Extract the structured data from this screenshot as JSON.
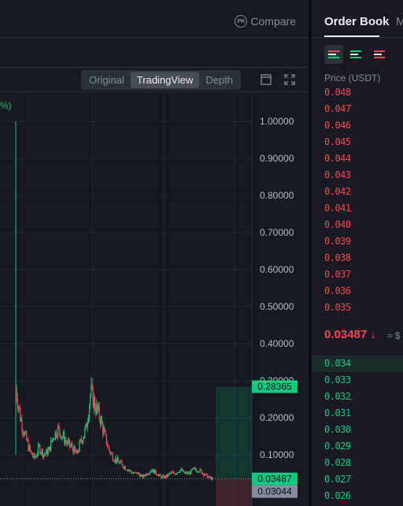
{
  "header": {
    "compare_label": "Compare",
    "compare_icon_text": "PK",
    "compare_icon": "pk-badge-icon"
  },
  "chart_toolbar": {
    "tabs": [
      {
        "label": "Original",
        "active": false
      },
      {
        "label": "TradingView",
        "active": true
      },
      {
        "label": "Depth",
        "active": false
      }
    ],
    "icons": [
      "window-layout-icon",
      "fullscreen-icon"
    ]
  },
  "chart": {
    "legend_fragment": "%)",
    "current_price_label": "0.03487",
    "low_price_label": "0.03044",
    "high_price_label": "0.28365"
  },
  "chart_data": {
    "type": "candlestick",
    "y_tick_labels": [
      "1.00000",
      "0.90000",
      "0.80000",
      "0.70000",
      "0.60000",
      "0.50000",
      "0.40000",
      "0.30000",
      "0.20000",
      "0.10000"
    ],
    "ylim": [
      0.0,
      1.07
    ],
    "grid": true,
    "approx_close_path": [
      0.28,
      0.2,
      0.15,
      0.11,
      0.09,
      0.12,
      0.1,
      0.11,
      0.15,
      0.17,
      0.15,
      0.13,
      0.12,
      0.1,
      0.14,
      0.17,
      0.27,
      0.23,
      0.2,
      0.15,
      0.11,
      0.09,
      0.08,
      0.07,
      0.06,
      0.05,
      0.05,
      0.04,
      0.05,
      0.06,
      0.05,
      0.04,
      0.04,
      0.05,
      0.05,
      0.06,
      0.05,
      0.05,
      0.06,
      0.06,
      0.05,
      0.04,
      0.035
    ],
    "spike_high": 1.0,
    "current_price": 0.03487,
    "range_low": 0.03044,
    "range_high": 0.28365,
    "colors": {
      "up": "#0ecb81",
      "down": "#f6465d"
    }
  },
  "orderbook": {
    "tab_label": "Order Book",
    "tab_more_label": "M",
    "mode_icons": [
      "both-sides-icon",
      "bids-only-icon",
      "asks-only-icon"
    ],
    "price_header": "Price (USDT)",
    "asks": [
      "0.048",
      "0.047",
      "0.046",
      "0.045",
      "0.044",
      "0.043",
      "0.042",
      "0.041",
      "0.040",
      "0.039",
      "0.038",
      "0.037",
      "0.036",
      "0.035"
    ],
    "mid_price": "0.03487",
    "mid_direction_icon": "arrow-down-icon",
    "mid_arrow": "↓",
    "mid_approx": "≈ $",
    "bids": [
      "0.034",
      "0.033",
      "0.032",
      "0.031",
      "0.030",
      "0.029",
      "0.028",
      "0.027",
      "0.026"
    ]
  },
  "colors": {
    "up": "#0ecb81",
    "down": "#f6465d",
    "background": "#161a1e",
    "panel": "#181a20"
  }
}
